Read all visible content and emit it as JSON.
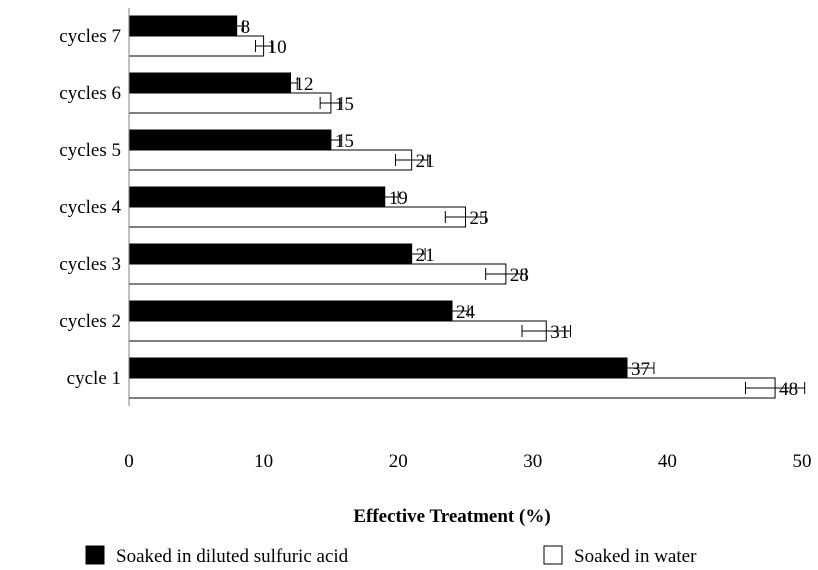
{
  "chart_data": {
    "type": "bar",
    "orientation": "horizontal",
    "categories": [
      "cycles 7",
      "cycles 6",
      "cycles 5",
      "cycles 4",
      "cycles 3",
      "cycles 2",
      "cycle 1"
    ],
    "series": [
      {
        "name": "Soaked in diluted sulfuric acid",
        "color": "#000000",
        "values": [
          8,
          12,
          15,
          19,
          21,
          24,
          37
        ],
        "error": [
          0.5,
          0.5,
          0.8,
          1.0,
          1.0,
          1.2,
          2.0
        ]
      },
      {
        "name": "Soaked in water",
        "color": "#ffffff",
        "values": [
          10,
          15,
          21,
          25,
          28,
          31,
          48
        ],
        "error": [
          0.6,
          0.8,
          1.2,
          1.5,
          1.5,
          1.8,
          2.2
        ]
      }
    ],
    "data_labels": [
      [
        "8",
        "12",
        "15",
        "19",
        "21",
        "24",
        "37"
      ],
      [
        "10",
        "15",
        "21",
        "25",
        "28",
        "31",
        "48"
      ]
    ],
    "xlabel": "Effective Treatment (%)",
    "xlim": [
      0,
      50
    ],
    "xticks": [
      "0",
      "10",
      "20",
      "30",
      "40",
      "50"
    ],
    "grid": false,
    "legend_position": "bottom"
  }
}
